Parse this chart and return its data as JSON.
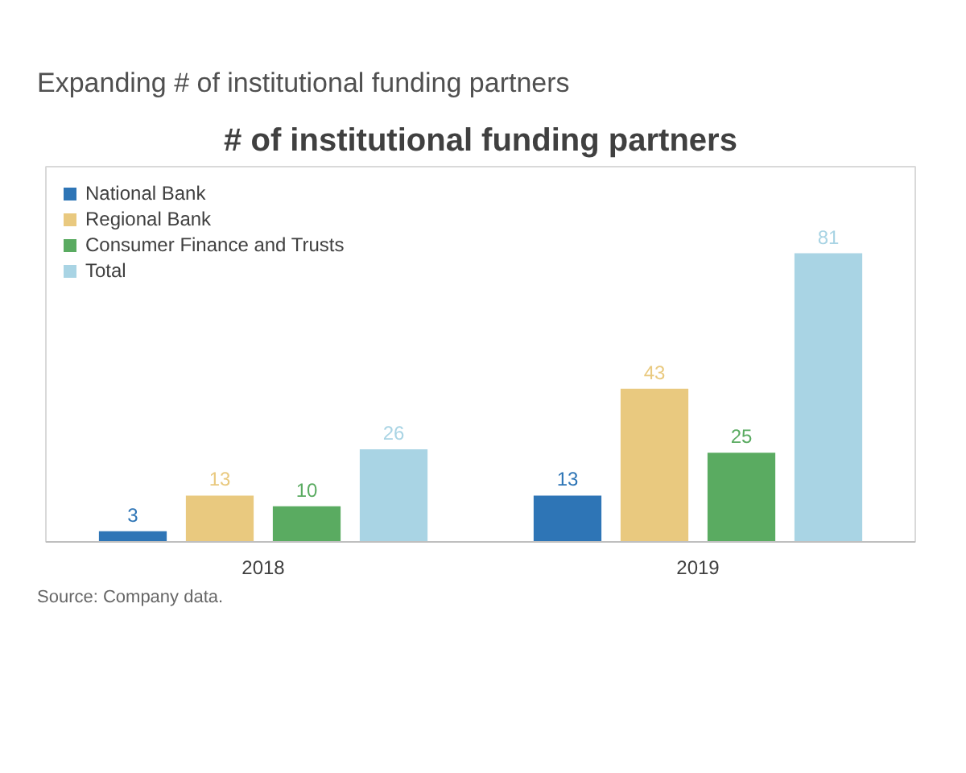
{
  "chart_data": {
    "type": "bar",
    "title": "Expanding # of institutional funding partners",
    "subtitle": "# of institutional funding partners",
    "categories": [
      "2018",
      "2019"
    ],
    "series": [
      {
        "name": "National Bank",
        "color": "#2e75b6",
        "values": [
          3,
          13
        ]
      },
      {
        "name": "Regional Bank",
        "color": "#e9c97f",
        "values": [
          13,
          43
        ]
      },
      {
        "name": "Consumer Finance and Trusts",
        "color": "#5aab61",
        "values": [
          10,
          25
        ]
      },
      {
        "name": "Total",
        "color": "#a9d4e4",
        "values": [
          26,
          81
        ]
      }
    ],
    "data_labels": true,
    "legend": "top left",
    "grid": false,
    "annotations": [
      "Source: Company data."
    ]
  }
}
